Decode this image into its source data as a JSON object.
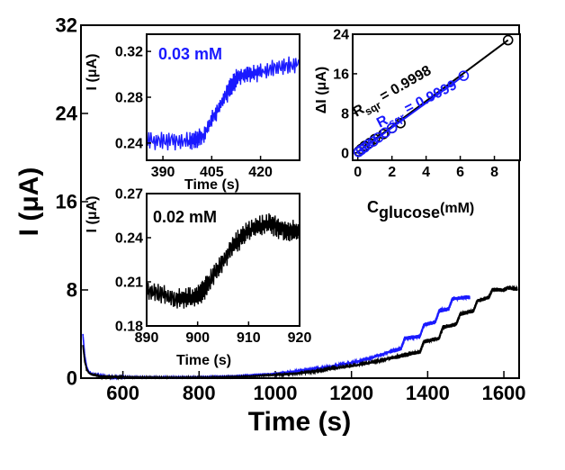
{
  "colors": {
    "black": "#000000",
    "blue": "#1a1aff"
  },
  "chart_data": [
    {
      "id": "main",
      "type": "line",
      "xlabel": "Time (s)",
      "ylabel": "I (μA)",
      "xlim": [
        490,
        1640
      ],
      "ylim": [
        0,
        32
      ],
      "xticks": [
        600,
        800,
        1000,
        1200,
        1400,
        1600
      ],
      "yticks": [
        0,
        8,
        16,
        24,
        32
      ],
      "series": [
        {
          "color": "blue",
          "x": [
            495,
            500,
            505,
            510,
            520,
            540,
            560,
            600,
            700,
            800,
            900,
            1000,
            1050,
            1100,
            1150,
            1200,
            1250,
            1300,
            1330,
            1340,
            1380,
            1390,
            1420,
            1430,
            1455,
            1465,
            1500,
            1510
          ],
          "y": [
            4.0,
            2.0,
            1.0,
            0.6,
            0.35,
            0.2,
            0.15,
            0.1,
            0.08,
            0.1,
            0.2,
            0.4,
            0.6,
            0.8,
            1.1,
            1.4,
            1.8,
            2.4,
            2.7,
            3.6,
            3.8,
            4.8,
            5.1,
            6.1,
            6.3,
            7.2,
            7.3,
            7.3
          ]
        },
        {
          "color": "black",
          "x": [
            495,
            500,
            505,
            510,
            520,
            540,
            600,
            700,
            800,
            900,
            1000,
            1050,
            1100,
            1150,
            1200,
            1250,
            1300,
            1340,
            1380,
            1390,
            1430,
            1440,
            1475,
            1485,
            1520,
            1530,
            1560,
            1570,
            1600,
            1610,
            1635
          ],
          "y": [
            3.0,
            1.5,
            0.8,
            0.5,
            0.3,
            0.15,
            0.1,
            0.05,
            0.05,
            0.1,
            0.3,
            0.4,
            0.6,
            0.9,
            1.1,
            1.4,
            1.8,
            2.1,
            2.4,
            3.3,
            3.6,
            4.6,
            4.9,
            5.8,
            6.1,
            7.0,
            7.3,
            8.0,
            8.0,
            8.2,
            8.1
          ]
        }
      ]
    },
    {
      "id": "inset_upper_left",
      "type": "line",
      "annotation": "0.03 mM",
      "xlabel": "Time (s)",
      "ylabel": "I (μA)",
      "xlim": [
        385,
        432
      ],
      "ylim": [
        0.225,
        0.335
      ],
      "xticks": [
        390,
        405,
        420
      ],
      "yticks": [
        0.24,
        0.28,
        0.32
      ],
      "series": [
        {
          "color": "blue",
          "x": [
            385,
            398,
            402,
            410,
            413,
            420,
            432
          ],
          "y": [
            0.242,
            0.242,
            0.245,
            0.285,
            0.298,
            0.302,
            0.31
          ]
        }
      ]
    },
    {
      "id": "inset_lower_left",
      "type": "line",
      "annotation": "0.02 mM",
      "xlabel": "Time (s)",
      "ylabel": "I (μA)",
      "xlim": [
        890,
        920
      ],
      "ylim": [
        0.18,
        0.27
      ],
      "xticks": [
        890,
        900,
        910,
        920
      ],
      "yticks": [
        0.18,
        0.21,
        0.24,
        0.27
      ],
      "series": [
        {
          "color": "black",
          "x": [
            890,
            896,
            900,
            902,
            907,
            910,
            914,
            917,
            920
          ],
          "y": [
            0.205,
            0.198,
            0.2,
            0.208,
            0.235,
            0.245,
            0.25,
            0.245,
            0.245
          ]
        }
      ]
    },
    {
      "id": "inset_calibration",
      "type": "scatter",
      "xlabel": "C",
      "xlabel_sub": "glucose",
      "xlabel_unit": "(mM)",
      "ylabel": "ΔI (μA)",
      "xlim": [
        -0.3,
        9.5
      ],
      "ylim": [
        -1.5,
        24
      ],
      "xticks": [
        0,
        2,
        4,
        6,
        8
      ],
      "yticks": [
        0,
        8,
        16,
        24
      ],
      "series": [
        {
          "color": "black",
          "x": [
            0.05,
            0.2,
            0.4,
            0.7,
            1.0,
            1.5,
            2.0,
            2.5,
            8.8
          ],
          "y": [
            0.3,
            0.8,
            1.4,
            2.0,
            2.8,
            3.8,
            5.0,
            6.0,
            22.8
          ],
          "fit": [
            [
              0,
              0.2
            ],
            [
              8.8,
              22.8
            ]
          ],
          "r_label": "R",
          "r_sub": "sqr",
          "r_value": " = 0.9998"
        },
        {
          "color": "blue",
          "x": [
            0.05,
            0.2,
            0.4,
            0.6,
            0.9,
            1.2,
            1.6,
            2.0,
            6.2
          ],
          "y": [
            0.2,
            0.6,
            1.1,
            1.7,
            2.3,
            3.1,
            4.1,
            5.0,
            15.6
          ],
          "fit": [
            [
              0,
              0.1
            ],
            [
              6.2,
              15.6
            ]
          ],
          "r_label": "R",
          "r_sub": "sqr",
          "r_value": " = 0.9999"
        }
      ]
    }
  ]
}
